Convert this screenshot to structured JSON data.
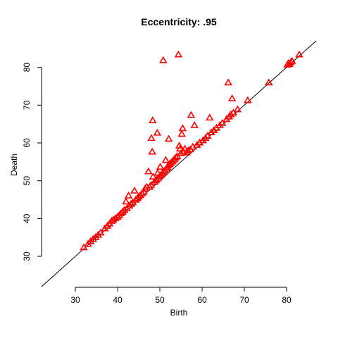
{
  "chart_data": {
    "type": "scatter",
    "title": "Eccentricity: .95",
    "xlabel": "Birth",
    "ylabel": "Death",
    "xlim": [
      22,
      87
    ],
    "ylim": [
      22,
      87
    ],
    "xticks": [
      30,
      40,
      50,
      60,
      70,
      80
    ],
    "yticks": [
      30,
      40,
      50,
      60,
      70,
      80
    ],
    "reference_line": "y = x",
    "marker": "triangle-open",
    "marker_color": "#ff0000",
    "grid": false,
    "points": [
      [
        32.0,
        32.3
      ],
      [
        33.0,
        33.2
      ],
      [
        33.6,
        33.9
      ],
      [
        34.2,
        34.5
      ],
      [
        34.8,
        35.0
      ],
      [
        35.4,
        35.6
      ],
      [
        36.0,
        36.2
      ],
      [
        37.0,
        37.3
      ],
      [
        37.6,
        38.0
      ],
      [
        38.1,
        38.6
      ],
      [
        38.6,
        39.3
      ],
      [
        39.0,
        39.6
      ],
      [
        39.5,
        40.0
      ],
      [
        40.0,
        40.4
      ],
      [
        40.4,
        40.8
      ],
      [
        40.8,
        41.3
      ],
      [
        41.2,
        41.7
      ],
      [
        41.6,
        42.2
      ],
      [
        42.0,
        44.4
      ],
      [
        42.2,
        42.6
      ],
      [
        42.6,
        46.0
      ],
      [
        42.8,
        43.3
      ],
      [
        43.2,
        43.8
      ],
      [
        43.6,
        44.2
      ],
      [
        44.0,
        47.3
      ],
      [
        44.3,
        44.9
      ],
      [
        44.7,
        45.3
      ],
      [
        45.0,
        45.7
      ],
      [
        45.4,
        46.1
      ],
      [
        45.8,
        46.6
      ],
      [
        46.2,
        47.0
      ],
      [
        46.5,
        47.8
      ],
      [
        46.9,
        48.3
      ],
      [
        47.3,
        52.4
      ],
      [
        47.6,
        48.3
      ],
      [
        47.9,
        48.8
      ],
      [
        48.0,
        61.2
      ],
      [
        48.2,
        57.6
      ],
      [
        48.3,
        65.9
      ],
      [
        48.4,
        51.0
      ],
      [
        48.7,
        49.6
      ],
      [
        49.0,
        50.0
      ],
      [
        49.3,
        50.3
      ],
      [
        49.4,
        62.6
      ],
      [
        49.5,
        52.0
      ],
      [
        49.7,
        50.7
      ],
      [
        50.0,
        51.2
      ],
      [
        50.1,
        53.6
      ],
      [
        50.3,
        51.5
      ],
      [
        50.6,
        51.9
      ],
      [
        50.8,
        81.8
      ],
      [
        50.9,
        52.3
      ],
      [
        51.2,
        52.7
      ],
      [
        51.4,
        55.4
      ],
      [
        51.6,
        53.1
      ],
      [
        51.8,
        53.6
      ],
      [
        52.0,
        54.0
      ],
      [
        52.1,
        61.0
      ],
      [
        52.3,
        54.3
      ],
      [
        52.6,
        54.6
      ],
      [
        52.9,
        55.0
      ],
      [
        53.2,
        55.3
      ],
      [
        53.5,
        55.7
      ],
      [
        53.8,
        56.1
      ],
      [
        54.1,
        56.4
      ],
      [
        54.4,
        83.3
      ],
      [
        54.6,
        59.2
      ],
      [
        54.8,
        58.4
      ],
      [
        55.0,
        57.2
      ],
      [
        55.2,
        62.3
      ],
      [
        55.4,
        63.8
      ],
      [
        55.6,
        57.6
      ],
      [
        55.9,
        58.4
      ],
      [
        56.3,
        57.4
      ],
      [
        56.7,
        57.9
      ],
      [
        57.2,
        58.2
      ],
      [
        57.4,
        67.3
      ],
      [
        57.8,
        58.9
      ],
      [
        58.2,
        64.6
      ],
      [
        58.8,
        59.4
      ],
      [
        59.4,
        60.0
      ],
      [
        60.2,
        60.6
      ],
      [
        60.8,
        61.2
      ],
      [
        61.3,
        61.8
      ],
      [
        61.8,
        66.6
      ],
      [
        62.2,
        62.7
      ],
      [
        62.8,
        63.3
      ],
      [
        63.4,
        63.9
      ],
      [
        64.2,
        64.6
      ],
      [
        64.8,
        65.2
      ],
      [
        65.8,
        66.2
      ],
      [
        66.2,
        75.9
      ],
      [
        66.4,
        66.9
      ],
      [
        66.8,
        67.5
      ],
      [
        67.1,
        71.7
      ],
      [
        67.4,
        67.9
      ],
      [
        68.4,
        68.8
      ],
      [
        70.8,
        71.2
      ],
      [
        75.8,
        75.9
      ],
      [
        80.2,
        80.6
      ],
      [
        80.4,
        81.0
      ],
      [
        80.7,
        80.8
      ],
      [
        81.0,
        81.3
      ],
      [
        81.3,
        81.6
      ],
      [
        83.0,
        83.3
      ]
    ]
  }
}
